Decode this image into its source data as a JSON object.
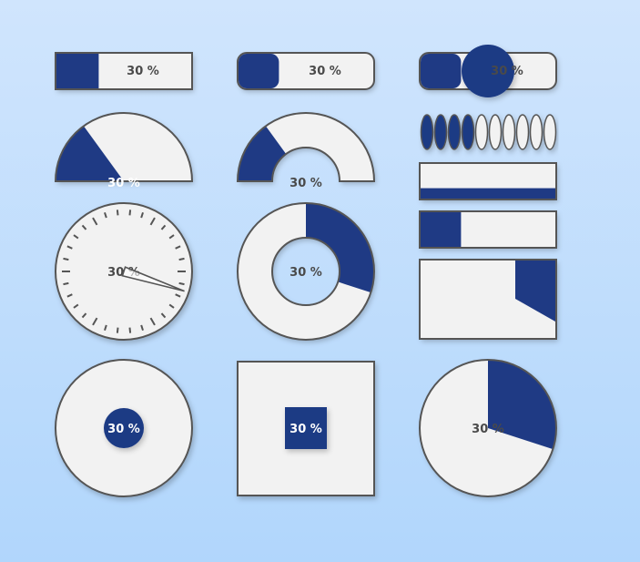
{
  "colors": {
    "fill": "#1f3a84",
    "track": "#f2f2f2",
    "stroke": "#555555",
    "text_dark": "#4a4a4a",
    "text_light": "#ffffff"
  },
  "indicators": [
    {
      "type": "linear-bar",
      "value": 0.3,
      "label": "30 %"
    },
    {
      "type": "rounded-bar",
      "value": 0.3,
      "label": "30 %"
    },
    {
      "type": "slider-knob",
      "value": 0.3,
      "label": "30 %"
    },
    {
      "type": "half-pie",
      "value": 0.3,
      "label": "30 %"
    },
    {
      "type": "half-ring",
      "value": 0.3,
      "label": "30 %"
    },
    {
      "type": "segmented-ellipses",
      "value": 0.4,
      "segments": 10
    },
    {
      "type": "bottom-fill-bar",
      "value": 0.3
    },
    {
      "type": "left-fill-bar",
      "value": 0.3
    },
    {
      "type": "clock-gauge",
      "value": 0.3,
      "label": "30 %"
    },
    {
      "type": "donut",
      "value": 0.3,
      "label": "30 %"
    },
    {
      "type": "polygon-fill-box",
      "value": 0.3
    },
    {
      "type": "growing-circle",
      "value": 0.3,
      "label": "30 %"
    },
    {
      "type": "growing-square",
      "value": 0.3,
      "label": "30 %"
    },
    {
      "type": "pie",
      "value": 0.3,
      "label": "30 %"
    }
  ]
}
